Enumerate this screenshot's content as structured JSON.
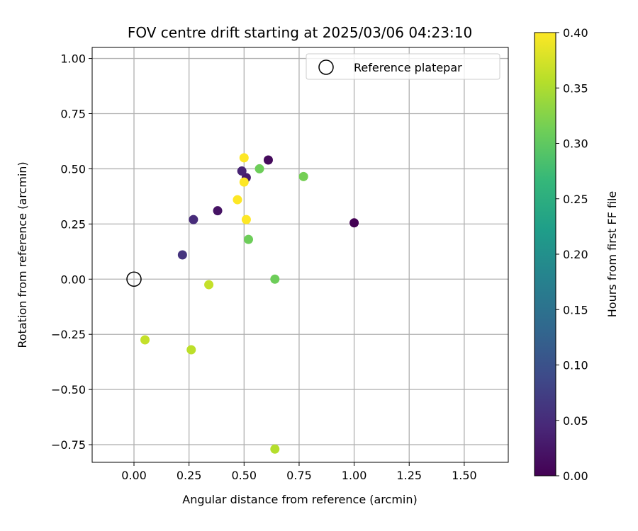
{
  "chart_data": {
    "type": "scatter",
    "title": "FOV centre drift starting at 2025/03/06 04:23:10",
    "xlabel": "Angular distance from reference (arcmin)",
    "ylabel": "Rotation from reference (arcmin)",
    "xlim": [
      -0.19,
      1.7
    ],
    "ylim": [
      -0.83,
      1.05
    ],
    "xticks": [
      "0.00",
      "0.25",
      "0.50",
      "0.75",
      "1.00",
      "1.25",
      "1.50"
    ],
    "xtick_values": [
      0,
      0.25,
      0.5,
      0.75,
      1.0,
      1.25,
      1.5
    ],
    "yticks": [
      "1.00",
      "0.75",
      "0.50",
      "0.25",
      "0.00",
      "−0.25",
      "−0.50",
      "−0.75"
    ],
    "ytick_values": [
      1.0,
      0.75,
      0.5,
      0.25,
      0,
      -0.25,
      -0.5,
      -0.75
    ],
    "grid": true,
    "legend": {
      "placement": "top-right",
      "entries": [
        "Reference platepar"
      ]
    },
    "reference_point": {
      "x": 0,
      "y": 0,
      "marker": "open-circle"
    },
    "colorbar": {
      "label": "Hours from first FF file",
      "range": [
        0,
        0.4
      ],
      "ticks": [
        "0.40",
        "0.35",
        "0.30",
        "0.25",
        "0.20",
        "0.15",
        "0.10",
        "0.05",
        "0.00"
      ],
      "tick_values": [
        0.4,
        0.35,
        0.3,
        0.25,
        0.2,
        0.15,
        0.1,
        0.05,
        0.0
      ],
      "colormap": "viridis"
    },
    "points": [
      {
        "x": 1.0,
        "y": 0.255,
        "hours": 0.0
      },
      {
        "x": 0.61,
        "y": 0.54,
        "hours": 0.01
      },
      {
        "x": 0.38,
        "y": 0.31,
        "hours": 0.02
      },
      {
        "x": 0.51,
        "y": 0.46,
        "hours": 0.03
      },
      {
        "x": 0.49,
        "y": 0.49,
        "hours": 0.04
      },
      {
        "x": 0.27,
        "y": 0.27,
        "hours": 0.05
      },
      {
        "x": 0.22,
        "y": 0.11,
        "hours": 0.06
      },
      {
        "x": 0.52,
        "y": 0.18,
        "hours": 0.31
      },
      {
        "x": 0.57,
        "y": 0.5,
        "hours": 0.31
      },
      {
        "x": 0.64,
        "y": 0.0,
        "hours": 0.31
      },
      {
        "x": 0.77,
        "y": 0.465,
        "hours": 0.315
      },
      {
        "x": 0.64,
        "y": -0.77,
        "hours": 0.355
      },
      {
        "x": 0.26,
        "y": -0.32,
        "hours": 0.36
      },
      {
        "x": 0.34,
        "y": -0.025,
        "hours": 0.365
      },
      {
        "x": 0.05,
        "y": -0.275,
        "hours": 0.365
      },
      {
        "x": 0.5,
        "y": 0.55,
        "hours": 0.4
      },
      {
        "x": 0.5,
        "y": 0.44,
        "hours": 0.4
      },
      {
        "x": 0.47,
        "y": 0.36,
        "hours": 0.4
      },
      {
        "x": 0.51,
        "y": 0.27,
        "hours": 0.4
      }
    ]
  }
}
